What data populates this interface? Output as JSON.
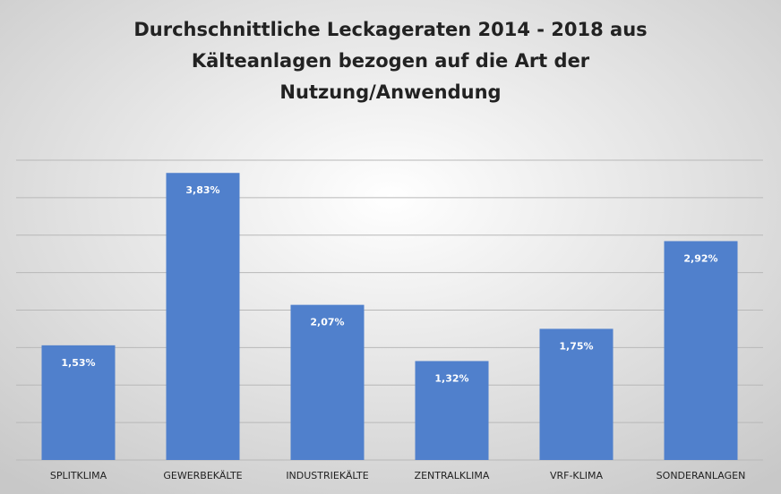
{
  "chart_data": {
    "type": "bar",
    "title": [
      "Durchschnittliche Leckageraten 2014 - 2018 aus",
      "Kälteanlagen bezogen auf die Art der",
      "Nutzung/Anwendung"
    ],
    "categories": [
      "SPLITKLIMA",
      "GEWERBEKÄLTE",
      "INDUSTRIEKÄLTE",
      "ZENTRALKLIMA",
      "VRF-KLIMA",
      "SONDERANLAGEN"
    ],
    "values": [
      1.53,
      3.83,
      2.07,
      1.32,
      1.75,
      2.92
    ],
    "value_labels": [
      "1,53%",
      "3,83%",
      "2,07%",
      "1,32%",
      "1,75%",
      "2,92%"
    ],
    "color": "#5080cc",
    "ylim": [
      0,
      4
    ],
    "yticks": [
      0,
      0.5,
      1,
      1.5,
      2,
      2.5,
      3,
      3.5,
      4
    ],
    "grid": true
  }
}
